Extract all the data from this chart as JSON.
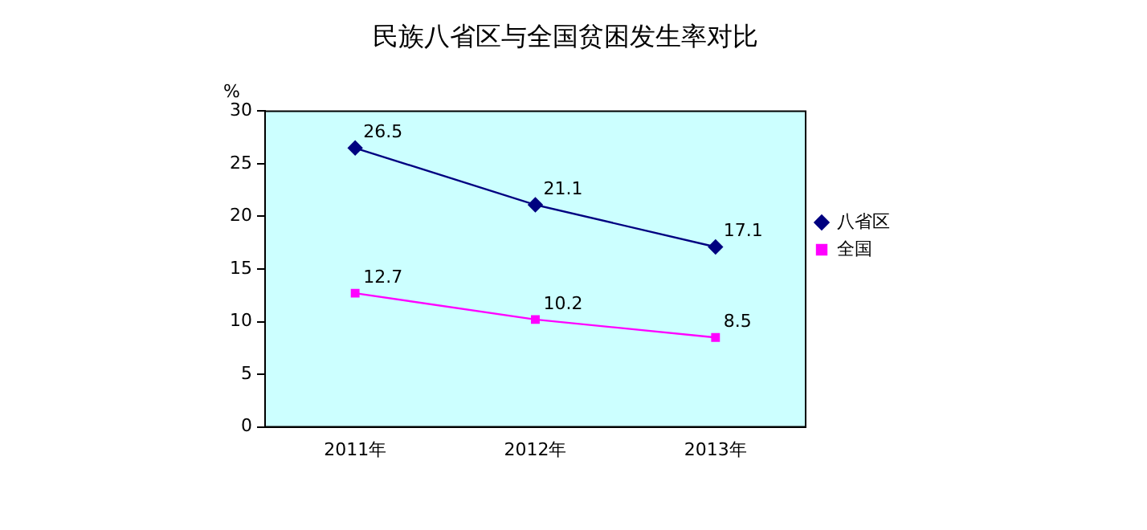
{
  "chart_data": {
    "type": "line",
    "title": "民族八省区与全国贫困发生率对比",
    "ylabel": "%",
    "categories": [
      "2011年",
      "2012年",
      "2013年"
    ],
    "series": [
      {
        "name": "八省区",
        "color": "#000080",
        "values": [
          26.5,
          21.1,
          17.1
        ],
        "marker": "diamond"
      },
      {
        "name": "全国",
        "color": "#ff00ff",
        "values": [
          12.7,
          10.2,
          8.5
        ],
        "marker": "square"
      }
    ],
    "ylim": [
      0,
      30
    ],
    "yticks": [
      0,
      5,
      10,
      15,
      20,
      25,
      30
    ],
    "grid": false,
    "legend": "right",
    "data_labels": true,
    "line_style": "solid"
  }
}
